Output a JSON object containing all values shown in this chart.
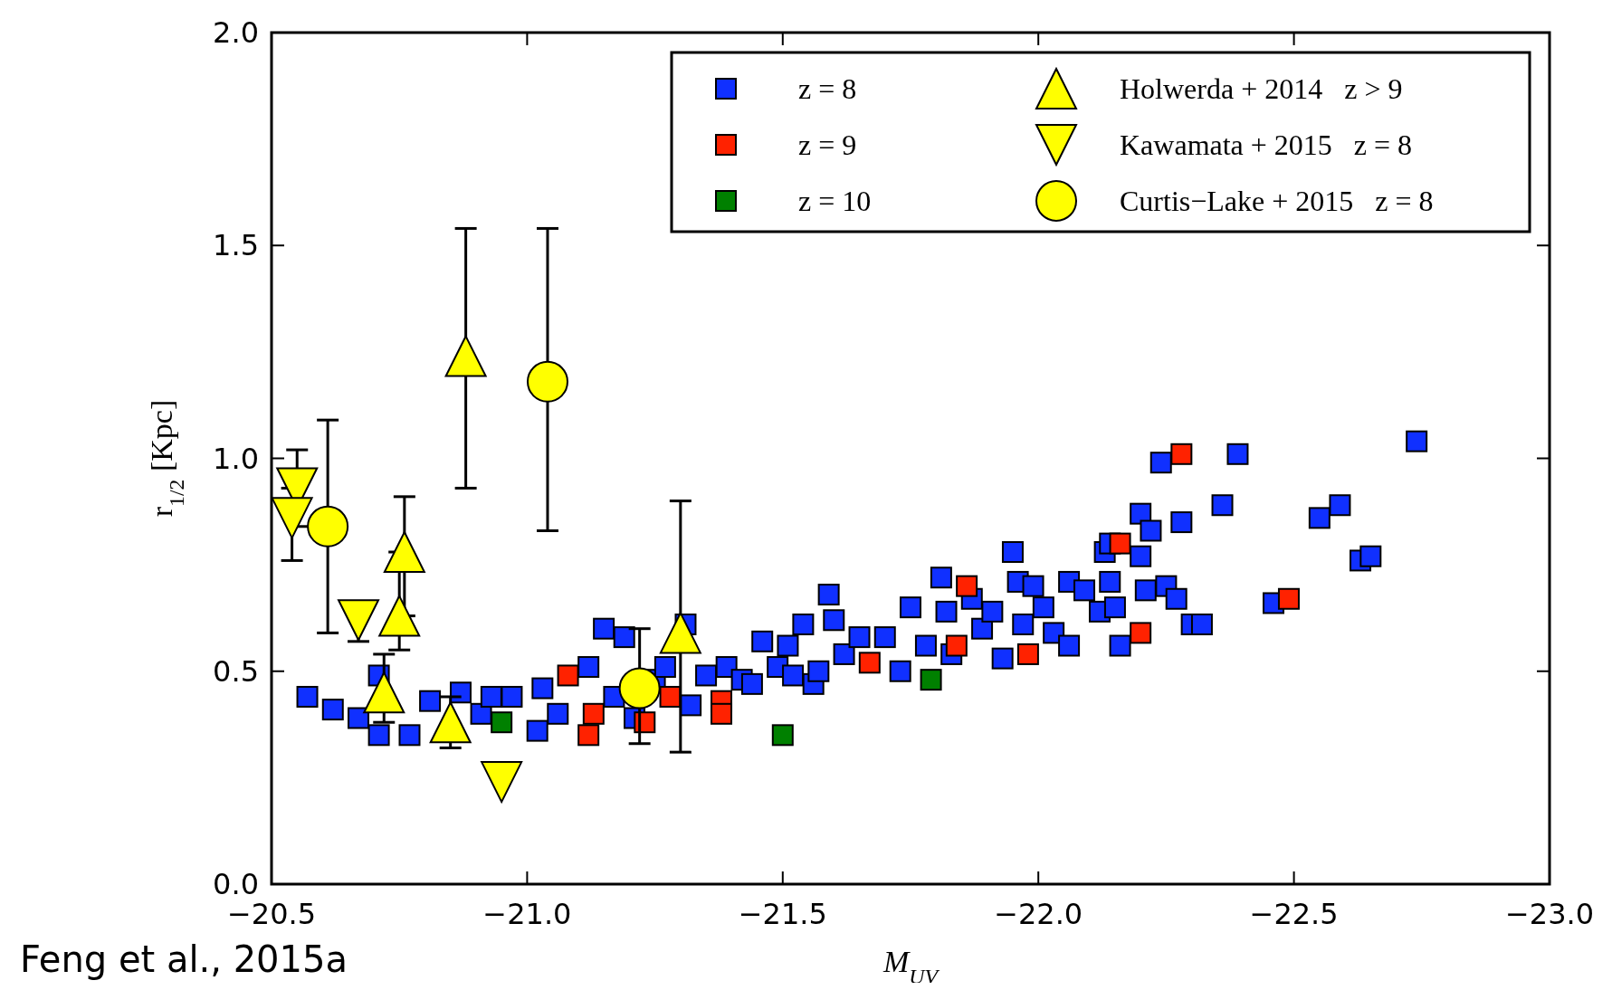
{
  "chart_data": {
    "type": "scatter",
    "xlabel": "M$_{UV}$",
    "ylabel": "r$_{1/2}$  [Kpc]",
    "annotations": [
      "Feng et al., 2015a"
    ],
    "xlim": [
      -20.5,
      -23.0
    ],
    "ylim": [
      0,
      2.0
    ],
    "xticks": [
      {
        "value": -20.5,
        "label": "−20.5"
      },
      {
        "value": -21.0,
        "label": "−21.0"
      },
      {
        "value": -21.5,
        "label": "−21.5"
      },
      {
        "value": -22.0,
        "label": "−22.0"
      },
      {
        "value": -22.5,
        "label": "−22.5"
      },
      {
        "value": -23.0,
        "label": "−23.0"
      }
    ],
    "yticks": [
      {
        "value": 0,
        "label": "0.0"
      },
      0.5,
      {
        "value": 1,
        "label": "1.0"
      },
      1.5,
      {
        "value": 2,
        "label": "2.0"
      }
    ],
    "grid": false,
    "legend": "top right",
    "series": [
      {
        "name": "z = 8",
        "color": "#1030ff",
        "marker": "square",
        "x": [
          -20.57,
          -20.62,
          -20.67,
          -20.71,
          -20.71,
          -20.77,
          -20.81,
          -20.87,
          -20.91,
          -20.93,
          -20.97,
          -21.02,
          -21.03,
          -21.06,
          -21.12,
          -21.15,
          -21.19,
          -21.17,
          -21.21,
          -21.25,
          -21.27,
          -21.31,
          -21.32,
          -21.35,
          -21.39,
          -21.42,
          -21.44,
          -21.46,
          -21.49,
          -21.51,
          -21.52,
          -21.54,
          -21.56,
          -21.57,
          -21.59,
          -21.6,
          -21.62,
          -21.65,
          -21.7,
          -21.73,
          -21.75,
          -21.78,
          -21.81,
          -21.82,
          -21.83,
          -21.87,
          -21.89,
          -21.91,
          -21.93,
          -21.95,
          -21.96,
          -21.97,
          -21.99,
          -22.01,
          -22.03,
          -22.06,
          -22.06,
          -22.09,
          -22.12,
          -22.14,
          -22.15,
          -22.13,
          -22.14,
          -22.16,
          -22.2,
          -22.22,
          -22.24,
          -22.2,
          -22.21,
          -22.25,
          -22.27,
          -22.28,
          -22.3,
          -22.32,
          -22.36,
          -22.39,
          -22.46,
          -22.55,
          -22.59,
          -22.63,
          -22.65,
          -22.74
        ],
        "values": [
          0.44,
          0.41,
          0.39,
          0.35,
          0.49,
          0.35,
          0.43,
          0.45,
          0.4,
          0.44,
          0.44,
          0.36,
          0.46,
          0.4,
          0.51,
          0.6,
          0.58,
          0.44,
          0.39,
          0.48,
          0.51,
          0.61,
          0.42,
          0.49,
          0.51,
          0.48,
          0.47,
          0.57,
          0.51,
          0.56,
          0.49,
          0.61,
          0.47,
          0.5,
          0.68,
          0.62,
          0.54,
          0.58,
          0.58,
          0.5,
          0.65,
          0.56,
          0.72,
          0.64,
          0.54,
          0.67,
          0.6,
          0.64,
          0.53,
          0.78,
          0.71,
          0.61,
          0.7,
          0.65,
          0.59,
          0.71,
          0.56,
          0.69,
          0.64,
          0.71,
          0.65,
          0.78,
          0.8,
          0.56,
          0.87,
          0.83,
          0.99,
          0.77,
          0.69,
          0.7,
          0.67,
          0.85,
          0.61,
          0.61,
          0.89,
          1.01,
          0.66,
          0.86,
          0.89,
          0.76,
          0.77,
          1.04
        ]
      },
      {
        "name": "z = 9",
        "color": "#ff2200",
        "marker": "square",
        "x": [
          -21.08,
          -21.13,
          -21.12,
          -21.23,
          -21.28,
          -21.38,
          -21.38,
          -21.67,
          -21.84,
          -21.86,
          -21.98,
          -22.16,
          -22.2,
          -22.28,
          -22.49
        ],
        "values": [
          0.49,
          0.4,
          0.35,
          0.38,
          0.44,
          0.43,
          0.4,
          0.52,
          0.56,
          0.7,
          0.54,
          0.8,
          0.59,
          1.01,
          0.67
        ]
      },
      {
        "name": "z = 10",
        "color": "#008000",
        "marker": "square",
        "x": [
          -20.95,
          -21.5,
          -21.79
        ],
        "values": [
          0.38,
          0.35,
          0.48
        ]
      },
      {
        "name": "Holwerda + 2014   z > 9",
        "color": "#ffff00",
        "marker": "triangle",
        "x": [
          -20.88,
          -20.76,
          -20.75,
          -20.72,
          -20.85,
          -21.3
        ],
        "values": [
          1.24,
          0.78,
          0.63,
          0.45,
          0.38,
          0.59
        ],
        "errors": [
          [
            0.93,
            1.54
          ],
          [
            0.63,
            0.91
          ],
          [
            0.55,
            0.78
          ],
          [
            0.38,
            0.54
          ],
          [
            0.32,
            0.44
          ],
          [
            0.31,
            0.9
          ]
        ]
      },
      {
        "name": "Kawamata + 2015   z = 8",
        "color": "#ffff00",
        "marker": "triangle-down",
        "x": [
          -20.55,
          -20.54,
          -20.67,
          -20.95
        ],
        "values": [
          0.93,
          0.86,
          0.62,
          0.24
        ],
        "errors": [
          [
            0.84,
            1.02
          ],
          [
            0.76,
            0.93
          ],
          [
            0.57,
            0.66
          ],
          null
        ]
      },
      {
        "name": "Curtis−Lake + 2015   z = 8",
        "color": "#ffff00",
        "marker": "circle",
        "x": [
          -20.61,
          -21.04,
          -21.22
        ],
        "values": [
          0.84,
          1.18,
          0.46
        ],
        "errors": [
          [
            0.59,
            1.09
          ],
          [
            0.83,
            1.54
          ],
          [
            0.33,
            0.6
          ]
        ]
      }
    ]
  }
}
